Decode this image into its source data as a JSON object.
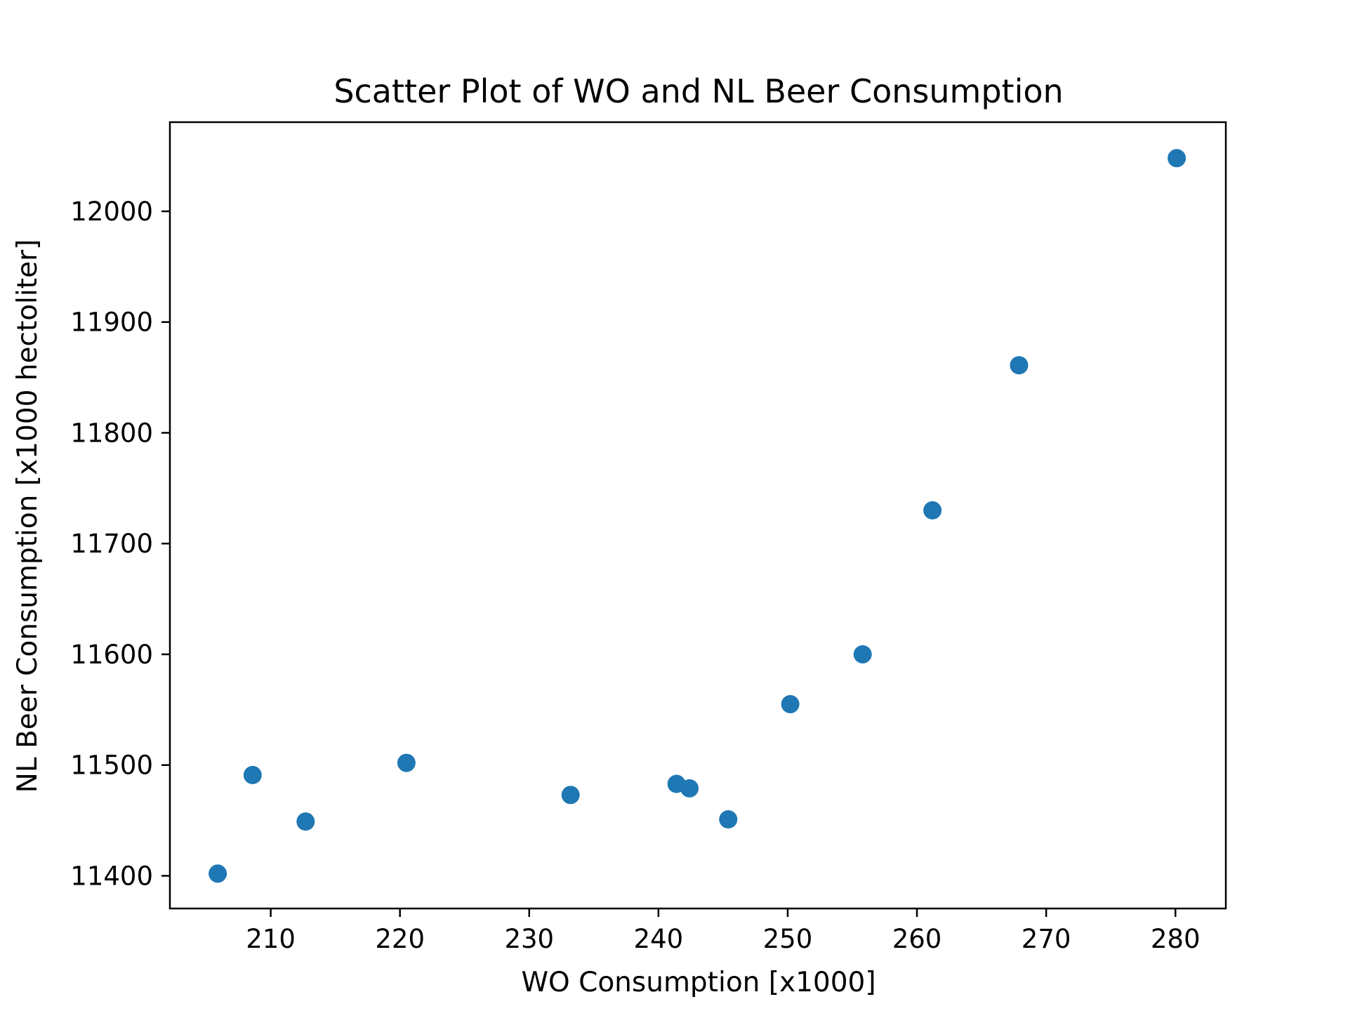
{
  "chart_data": {
    "type": "scatter",
    "title": "Scatter Plot of WO and NL Beer Consumption",
    "xlabel": "WO Consumption [x1000]",
    "ylabel": "NL Beer Consumption [x1000 hectoliter]",
    "xlim": [
      202.2,
      283.9
    ],
    "ylim": [
      11370.5,
      12080.5
    ],
    "xticks": [
      210,
      220,
      230,
      240,
      250,
      260,
      270,
      280
    ],
    "yticks": [
      11400,
      11500,
      11600,
      11700,
      11800,
      11900,
      12000
    ],
    "grid": false,
    "legend": "none",
    "colors": {
      "marker": "#1f77b4",
      "axes": "#000000",
      "background": "#ffffff"
    },
    "points": [
      {
        "x": 205.9,
        "y": 11402
      },
      {
        "x": 208.6,
        "y": 11491
      },
      {
        "x": 212.7,
        "y": 11449
      },
      {
        "x": 220.5,
        "y": 11502
      },
      {
        "x": 233.2,
        "y": 11473
      },
      {
        "x": 241.4,
        "y": 11483
      },
      {
        "x": 242.4,
        "y": 11479
      },
      {
        "x": 245.4,
        "y": 11451
      },
      {
        "x": 250.2,
        "y": 11555
      },
      {
        "x": 255.8,
        "y": 11600
      },
      {
        "x": 261.2,
        "y": 11730
      },
      {
        "x": 267.9,
        "y": 11861
      },
      {
        "x": 280.1,
        "y": 12048
      }
    ]
  }
}
